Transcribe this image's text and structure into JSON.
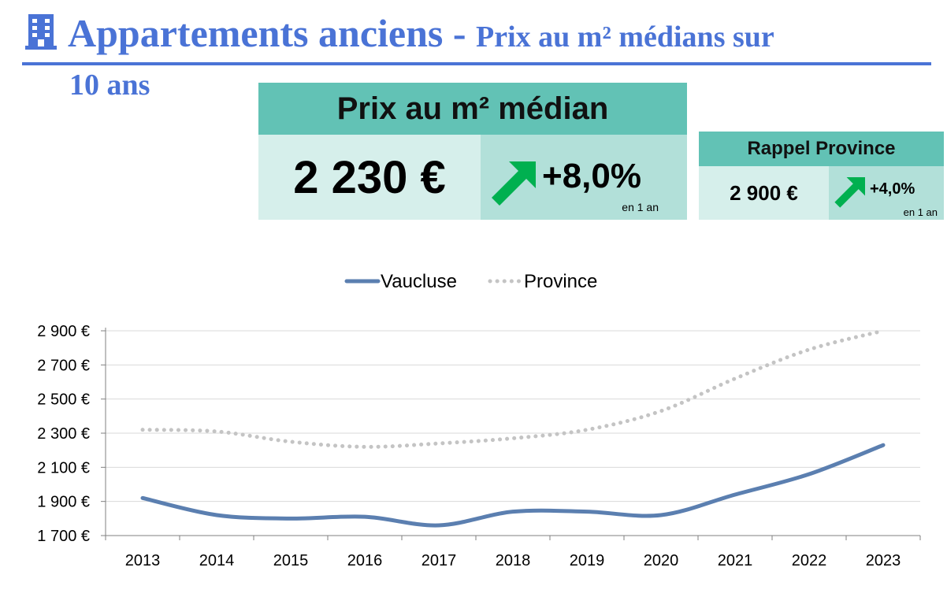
{
  "header": {
    "title_main": "Appartements anciens - ",
    "title_sub": "Prix au m² médians sur",
    "title_cont": "10 ans",
    "icon": "building-icon"
  },
  "kpi_main": {
    "label": "Prix au m² médian",
    "value": "2 230 €",
    "change": "+8,0%",
    "period": "en 1 an"
  },
  "kpi_province": {
    "label": "Rappel Province",
    "value": "2 900 €",
    "change": "+4,0%",
    "period": "en 1 an"
  },
  "colors": {
    "accent": "#4a73d6",
    "card_head": "#62c2b5",
    "card_light": "#d6efeb",
    "card_mid": "#b2e0d9",
    "arrow": "#00b050",
    "vaucluse": "#5b7fb0",
    "province": "#c4c4c4"
  },
  "chart_data": {
    "type": "line",
    "categories": [
      "2013",
      "2014",
      "2015",
      "2016",
      "2017",
      "2018",
      "2019",
      "2020",
      "2021",
      "2022",
      "2023"
    ],
    "series": [
      {
        "name": "Vaucluse",
        "values": [
          1920,
          1820,
          1800,
          1810,
          1760,
          1840,
          1840,
          1820,
          1940,
          2060,
          2230
        ],
        "style": "solid"
      },
      {
        "name": "Province",
        "values": [
          2320,
          2310,
          2250,
          2220,
          2240,
          2270,
          2320,
          2430,
          2620,
          2790,
          2900
        ],
        "style": "dotted"
      }
    ],
    "ylim": [
      1700,
      2900
    ],
    "yticks": [
      1700,
      1900,
      2100,
      2300,
      2500,
      2700,
      2900
    ],
    "ytick_labels": [
      "1 700 €",
      "1 900 €",
      "2 100 €",
      "2 300 €",
      "2 500 €",
      "2 700 €",
      "2 900 €"
    ],
    "legend": "top",
    "grid": true
  }
}
